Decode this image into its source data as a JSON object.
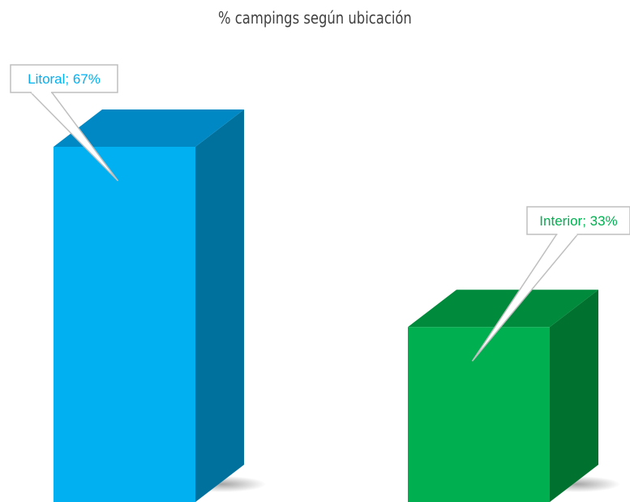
{
  "chart_data": {
    "type": "bar",
    "title": "% campings según ubicación",
    "categories": [
      "Litoral",
      "Interior"
    ],
    "values": [
      67,
      33
    ],
    "ylim": [
      0,
      80
    ],
    "data_labels": [
      "Litoral; 67%",
      "Interior; 33%"
    ],
    "colors": {
      "Litoral": {
        "front": "#00b0f0",
        "side": "#00719c",
        "top": "#0088c4"
      },
      "Interior": {
        "front": "#00b050",
        "side": "#00712f",
        "top": "#008a3c"
      }
    },
    "style": "3d-column",
    "grid": false,
    "legend": "none"
  }
}
